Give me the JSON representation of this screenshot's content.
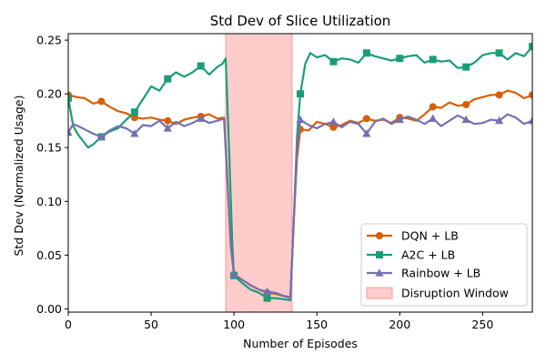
{
  "chart_data": {
    "type": "line",
    "title": "Std Dev of Slice Utilization",
    "xlabel": "Number of Episodes",
    "ylabel": "Std Dev (Normalized Usage)",
    "xlim": [
      0,
      280
    ],
    "ylim": [
      -0.003,
      0.256
    ],
    "xticks": [
      0,
      50,
      100,
      150,
      200,
      250
    ],
    "yticks": [
      0.0,
      0.05,
      0.1,
      0.15,
      0.2,
      0.25
    ],
    "ytick_labels": [
      "0.00",
      "0.05",
      "0.10",
      "0.15",
      "0.20",
      "0.25"
    ],
    "grid": false,
    "legend_position": "lower right",
    "disruption": {
      "start": 95,
      "end": 135,
      "label": "Disruption Window",
      "color": "#ff9999"
    },
    "series": [
      {
        "name": "DQN + LB",
        "color": "#d95f02",
        "marker": "circle",
        "x": [
          0,
          5,
          10,
          15,
          20,
          25,
          30,
          35,
          40,
          45,
          50,
          55,
          60,
          65,
          70,
          75,
          80,
          85,
          90,
          94,
          96,
          98,
          100,
          105,
          110,
          115,
          120,
          125,
          130,
          134,
          136,
          138,
          140,
          145,
          150,
          155,
          160,
          165,
          170,
          175,
          180,
          185,
          190,
          195,
          200,
          205,
          210,
          215,
          220,
          225,
          230,
          235,
          240,
          245,
          250,
          255,
          260,
          265,
          270,
          275,
          280
        ],
        "y": [
          0.199,
          0.197,
          0.196,
          0.191,
          0.193,
          0.188,
          0.184,
          0.182,
          0.178,
          0.177,
          0.178,
          0.176,
          0.175,
          0.172,
          0.176,
          0.178,
          0.179,
          0.181,
          0.177,
          0.178,
          0.12,
          0.06,
          0.032,
          0.027,
          0.022,
          0.018,
          0.015,
          0.014,
          0.012,
          0.011,
          0.08,
          0.14,
          0.167,
          0.166,
          0.174,
          0.172,
          0.169,
          0.171,
          0.175,
          0.173,
          0.177,
          0.175,
          0.176,
          0.173,
          0.178,
          0.177,
          0.175,
          0.181,
          0.188,
          0.187,
          0.192,
          0.189,
          0.19,
          0.195,
          0.197,
          0.199,
          0.199,
          0.203,
          0.201,
          0.196,
          0.199
        ],
        "marker_x": [
          0,
          20,
          40,
          60,
          80,
          100,
          120,
          140,
          160,
          180,
          200,
          220,
          240,
          260,
          280
        ]
      },
      {
        "name": "A2C + LB",
        "color": "#1b9e77",
        "marker": "square",
        "x": [
          0,
          3,
          6,
          10,
          12,
          15,
          20,
          25,
          30,
          35,
          40,
          45,
          50,
          55,
          60,
          65,
          70,
          75,
          80,
          85,
          90,
          93,
          95,
          97,
          99,
          100,
          105,
          110,
          115,
          120,
          125,
          130,
          134,
          136,
          138,
          140,
          143,
          146,
          150,
          155,
          160,
          165,
          170,
          175,
          180,
          185,
          190,
          195,
          200,
          205,
          210,
          215,
          220,
          225,
          230,
          235,
          240,
          245,
          250,
          255,
          260,
          265,
          270,
          275,
          280
        ],
        "y": [
          0.196,
          0.17,
          0.162,
          0.154,
          0.15,
          0.153,
          0.16,
          0.165,
          0.168,
          0.176,
          0.183,
          0.195,
          0.207,
          0.203,
          0.214,
          0.22,
          0.216,
          0.22,
          0.226,
          0.218,
          0.225,
          0.228,
          0.233,
          0.15,
          0.06,
          0.031,
          0.024,
          0.018,
          0.015,
          0.01,
          0.01,
          0.009,
          0.008,
          0.08,
          0.16,
          0.2,
          0.228,
          0.238,
          0.234,
          0.236,
          0.23,
          0.233,
          0.232,
          0.229,
          0.238,
          0.235,
          0.233,
          0.231,
          0.233,
          0.235,
          0.236,
          0.229,
          0.232,
          0.23,
          0.231,
          0.224,
          0.225,
          0.229,
          0.236,
          0.238,
          0.238,
          0.232,
          0.238,
          0.235,
          0.244
        ],
        "marker_x": [
          0,
          20,
          40,
          60,
          80,
          100,
          120,
          140,
          160,
          180,
          200,
          220,
          240,
          260,
          280
        ]
      },
      {
        "name": "Rainbow + LB",
        "color": "#7570b3",
        "marker": "triangle",
        "x": [
          0,
          3,
          6,
          10,
          15,
          20,
          25,
          30,
          35,
          40,
          45,
          50,
          55,
          60,
          65,
          70,
          75,
          80,
          85,
          90,
          94,
          96,
          98,
          100,
          105,
          110,
          115,
          120,
          125,
          130,
          134,
          136,
          138,
          140,
          145,
          150,
          155,
          160,
          165,
          170,
          175,
          180,
          185,
          190,
          195,
          200,
          205,
          210,
          215,
          220,
          225,
          230,
          235,
          240,
          245,
          250,
          255,
          260,
          265,
          270,
          275,
          280
        ],
        "y": [
          0.164,
          0.172,
          0.17,
          0.167,
          0.163,
          0.16,
          0.166,
          0.17,
          0.168,
          0.163,
          0.171,
          0.17,
          0.175,
          0.168,
          0.174,
          0.17,
          0.173,
          0.177,
          0.173,
          0.175,
          0.177,
          0.12,
          0.06,
          0.032,
          0.027,
          0.022,
          0.018,
          0.016,
          0.015,
          0.012,
          0.01,
          0.08,
          0.15,
          0.176,
          0.171,
          0.168,
          0.172,
          0.174,
          0.169,
          0.174,
          0.172,
          0.163,
          0.174,
          0.177,
          0.172,
          0.176,
          0.179,
          0.176,
          0.172,
          0.177,
          0.17,
          0.175,
          0.18,
          0.176,
          0.172,
          0.173,
          0.176,
          0.175,
          0.181,
          0.178,
          0.172,
          0.175
        ],
        "marker_x": [
          0,
          20,
          40,
          60,
          80,
          100,
          120,
          140,
          160,
          180,
          200,
          220,
          240,
          260,
          280
        ]
      }
    ]
  }
}
